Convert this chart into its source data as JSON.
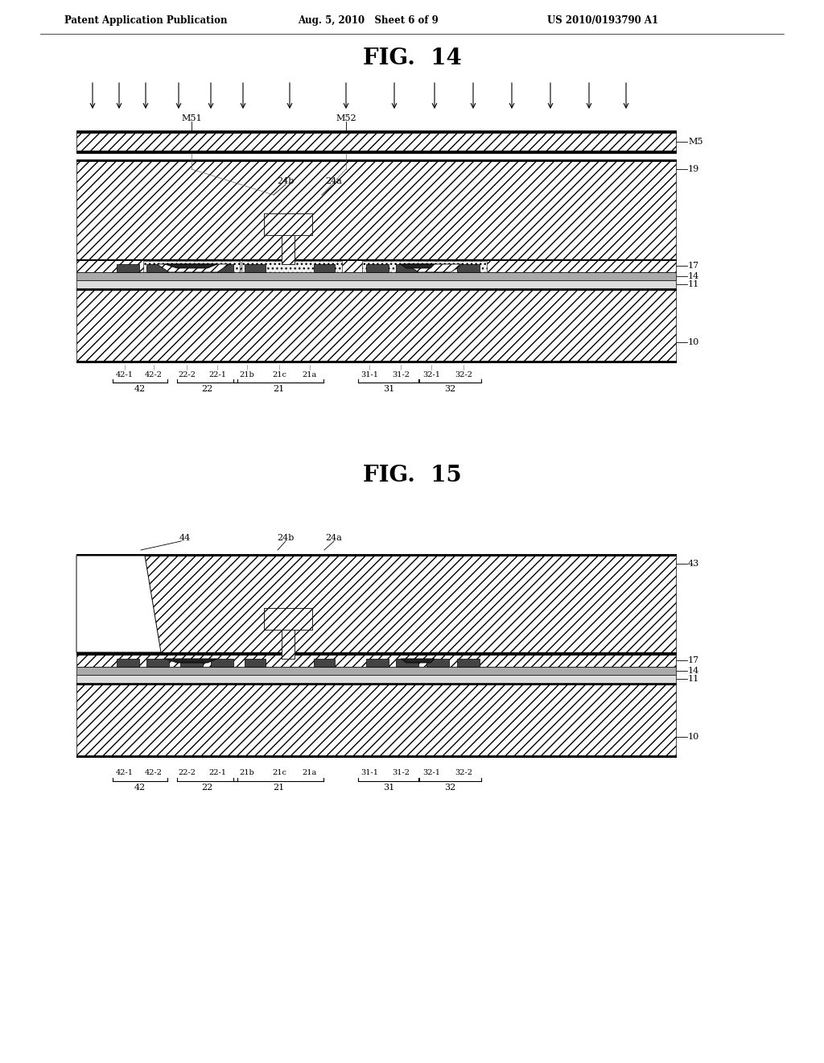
{
  "bg_color": "#ffffff",
  "header_left": "Patent Application Publication",
  "header_mid": "Aug. 5, 2010   Sheet 6 of 9",
  "header_right": "US 2010/0193790 A1",
  "fig14_title": "FIG.  14",
  "fig15_title": "FIG.  15"
}
